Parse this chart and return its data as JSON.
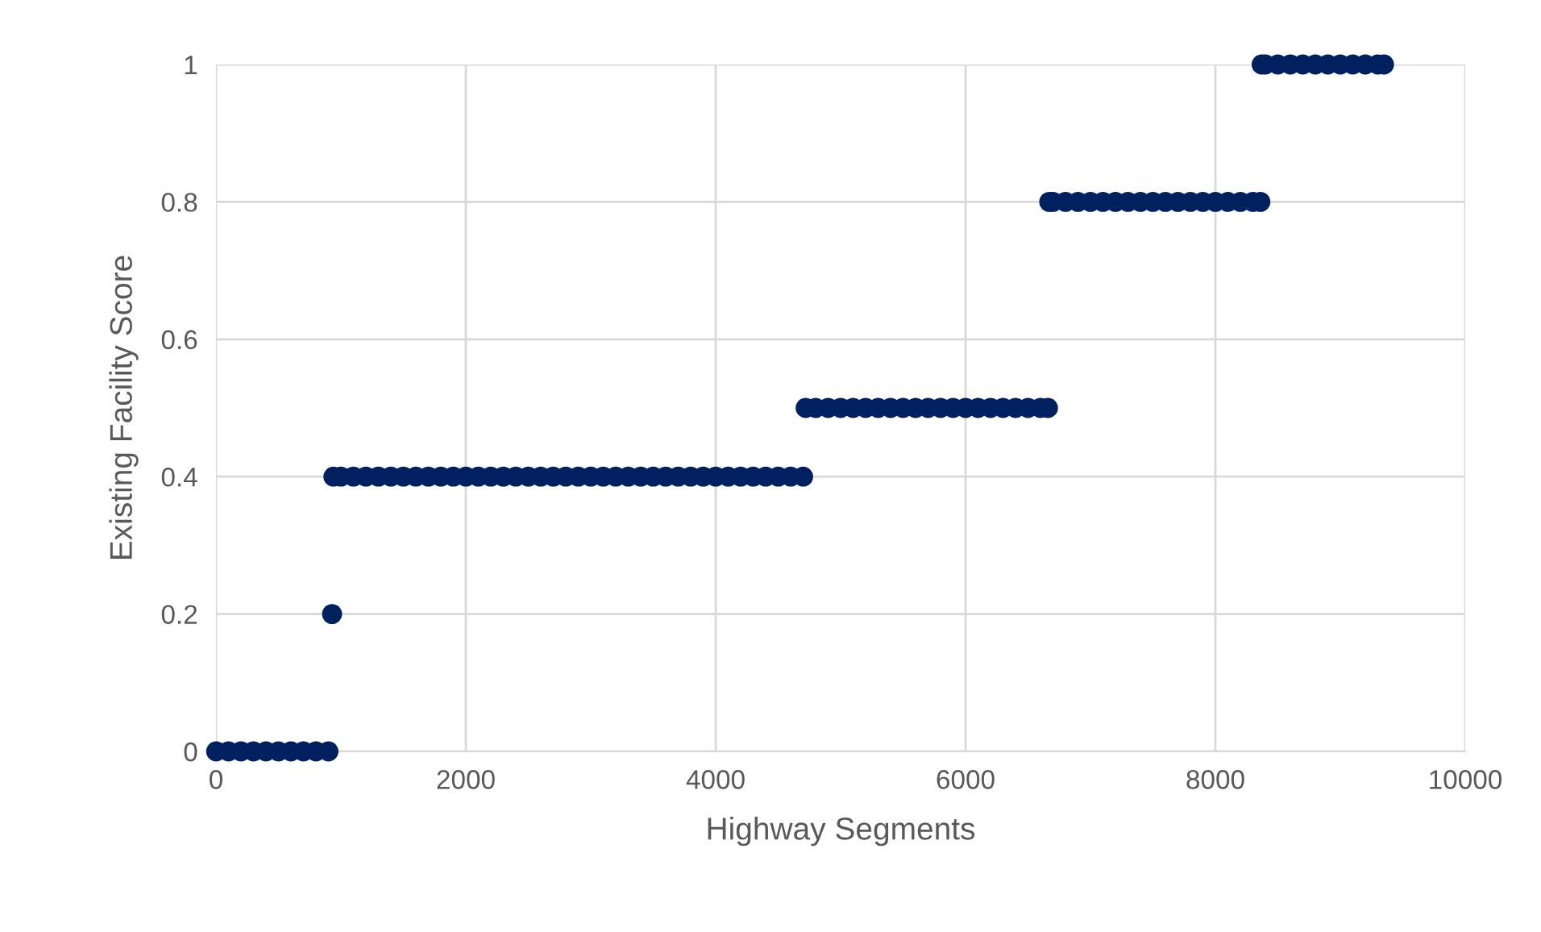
{
  "chart_data": {
    "type": "scatter",
    "xlabel": "Highway Segments",
    "ylabel": "Existing Facility Score",
    "xlim": [
      0,
      10000
    ],
    "xticks": [
      0,
      2000,
      4000,
      6000,
      8000,
      10000
    ],
    "ylim": [
      0,
      1
    ],
    "yticks": [
      0,
      {
        "value": 0.2,
        "label": "0.2"
      },
      {
        "value": 0.4,
        "label": "0.4"
      },
      {
        "value": 0.6,
        "label": "0.6"
      },
      {
        "value": 0.8,
        "label": "0.8"
      },
      1
    ],
    "grid": true,
    "marker": "circle",
    "series": [
      {
        "color": "#002060",
        "x": [
          1,
          100,
          200,
          300,
          400,
          500,
          600,
          700,
          800,
          900,
          929,
          940,
          1000,
          1100,
          1200,
          1300,
          1400,
          1500,
          1600,
          1700,
          1800,
          1900,
          2000,
          2100,
          2200,
          2300,
          2400,
          2500,
          2600,
          2700,
          2800,
          2900,
          3000,
          3100,
          3200,
          3300,
          3400,
          3500,
          3600,
          3700,
          3800,
          3900,
          4000,
          4100,
          4200,
          4300,
          4400,
          4500,
          4600,
          4700,
          4720,
          4800,
          4900,
          5000,
          5100,
          5200,
          5300,
          5400,
          5500,
          5600,
          5700,
          5800,
          5900,
          6000,
          6100,
          6200,
          6300,
          6400,
          6500,
          6600,
          6660,
          6670,
          6700,
          6800,
          6900,
          7000,
          7100,
          7200,
          7300,
          7400,
          7500,
          7600,
          7700,
          7800,
          7900,
          8000,
          8100,
          8200,
          8300,
          8360,
          8370,
          8400,
          8500,
          8600,
          8700,
          8800,
          8900,
          9000,
          9100,
          9200,
          9300,
          9350
        ],
        "values": [
          0,
          0,
          0,
          0,
          0,
          0,
          0,
          0,
          0,
          0,
          0.2,
          0.4,
          0.4,
          0.4,
          0.4,
          0.4,
          0.4,
          0.4,
          0.4,
          0.4,
          0.4,
          0.4,
          0.4,
          0.4,
          0.4,
          0.4,
          0.4,
          0.4,
          0.4,
          0.4,
          0.4,
          0.4,
          0.4,
          0.4,
          0.4,
          0.4,
          0.4,
          0.4,
          0.4,
          0.4,
          0.4,
          0.4,
          0.4,
          0.4,
          0.4,
          0.4,
          0.4,
          0.4,
          0.4,
          0.4,
          0.5,
          0.5,
          0.5,
          0.5,
          0.5,
          0.5,
          0.5,
          0.5,
          0.5,
          0.5,
          0.5,
          0.5,
          0.5,
          0.5,
          0.5,
          0.5,
          0.5,
          0.5,
          0.5,
          0.5,
          0.5,
          0.8,
          0.8,
          0.8,
          0.8,
          0.8,
          0.8,
          0.8,
          0.8,
          0.8,
          0.8,
          0.8,
          0.8,
          0.8,
          0.8,
          0.8,
          0.8,
          0.8,
          0.8,
          0.8,
          1,
          1,
          1,
          1,
          1,
          1,
          1,
          1,
          1,
          1,
          1,
          1
        ]
      }
    ]
  }
}
